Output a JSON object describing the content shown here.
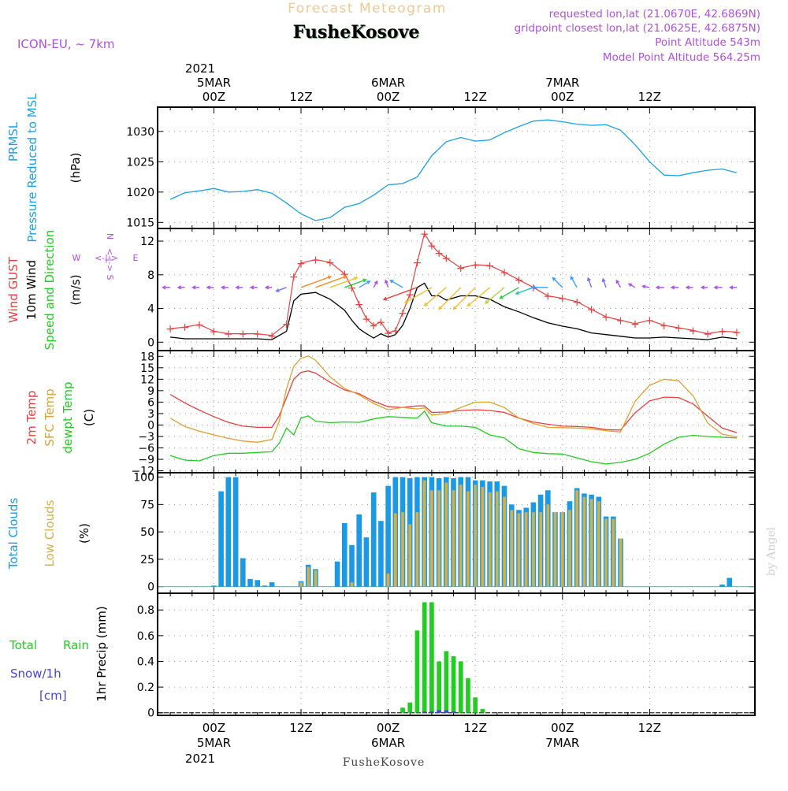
{
  "header": {
    "product": "Forecast Meteogram",
    "location": "FusheKosove",
    "model": "ICON-EU, ~ 7km",
    "requested": "requested lon,lat (21.0670E, 42.6869N)",
    "gridpoint": "gridpoint closest lon,lat (21.0625E, 42.6875N)",
    "point_alt": "Point Altitude 543m",
    "model_alt": "Model Point Altitude 564.25m",
    "credit": "by Angel",
    "footer_location": "FusheKosove"
  },
  "top_axis": {
    "year": "2021",
    "ticks": [
      {
        "h": 0,
        "label": "00Z",
        "date": "5MAR"
      },
      {
        "h": 12,
        "label": "12Z",
        "date": ""
      },
      {
        "h": 24,
        "label": "00Z",
        "date": "6MAR"
      },
      {
        "h": 36,
        "label": "12Z",
        "date": ""
      },
      {
        "h": 48,
        "label": "00Z",
        "date": "7MAR"
      },
      {
        "h": 60,
        "label": "12Z",
        "date": ""
      }
    ]
  },
  "bottom_axis": {
    "year": "2021",
    "ticks": [
      {
        "h": 0,
        "label": "00Z",
        "date": "5MAR"
      },
      {
        "h": 12,
        "label": "12Z",
        "date": ""
      },
      {
        "h": 24,
        "label": "00Z",
        "date": "6MAR"
      },
      {
        "h": 36,
        "label": "12Z",
        "date": ""
      },
      {
        "h": 48,
        "label": "00Z",
        "date": "7MAR"
      },
      {
        "h": 60,
        "label": "12Z",
        "date": ""
      }
    ]
  },
  "colors": {
    "pressure": "#1aa0e6",
    "gust": "#e84040",
    "wind": "#000000",
    "temp2m": "#e84040",
    "sfc": "#e0a030",
    "dew": "#22cc22",
    "total_clouds": "#1a9ae6",
    "low_clouds": "#d4b04a",
    "rain": "#22cc22",
    "snow": "#4444dd",
    "purple": "#b050e0",
    "title_orange": "#f0c890"
  },
  "chart_data": [
    {
      "name": "pressure",
      "type": "line",
      "ylabels": [
        "PRMSL",
        "Pressure Reduced to MSL",
        "(hPa)"
      ],
      "ylim": [
        1014,
        1034
      ],
      "yticks": [
        1015,
        1020,
        1025,
        1030
      ],
      "x_hours": [
        -6,
        -4,
        -2,
        0,
        2,
        4,
        6,
        8,
        10,
        12,
        14,
        16,
        18,
        20,
        22,
        24,
        26,
        28,
        30,
        32,
        34,
        36,
        38,
        40,
        42,
        44,
        46,
        48,
        50,
        52,
        54,
        56,
        58,
        60,
        62,
        64,
        66,
        68,
        70,
        72
      ],
      "values": [
        1018.8,
        1019.9,
        1020.2,
        1020.6,
        1020.0,
        1020.1,
        1020.4,
        1019.8,
        1018.2,
        1016.4,
        1015.3,
        1015.8,
        1017.5,
        1018.1,
        1019.5,
        1021.2,
        1021.4,
        1022.5,
        1026.0,
        1028.3,
        1029.0,
        1028.4,
        1028.6,
        1029.8,
        1030.8,
        1031.7,
        1031.9,
        1031.6,
        1031.2,
        1031.0,
        1031.1,
        1030.2,
        1027.8,
        1025.0,
        1022.8,
        1022.7,
        1023.2,
        1023.6,
        1023.8,
        1023.2
      ],
      "grid": true
    },
    {
      "name": "wind",
      "type": "line",
      "ylabels": [
        "Wind GUST",
        "10m Wind",
        "Speed and Direction",
        "(m/s)"
      ],
      "compass": {
        "n": "N",
        "s": "S",
        "w": "W",
        "e": "E",
        "arrow": "<-|->"
      },
      "ylim": [
        -1,
        13.5
      ],
      "yticks": [
        0,
        4,
        8,
        12
      ],
      "x_hours": [
        -6,
        -4,
        -2,
        0,
        2,
        4,
        6,
        8,
        10,
        11,
        12,
        14,
        16,
        18,
        19,
        20,
        21,
        22,
        23,
        24,
        25,
        26,
        27,
        28,
        29,
        30,
        31,
        32,
        34,
        36,
        38,
        40,
        42,
        44,
        46,
        48,
        50,
        52,
        54,
        56,
        58,
        60,
        62,
        64,
        66,
        68,
        70,
        72
      ],
      "gust": [
        1.6,
        1.8,
        2.1,
        1.3,
        1.0,
        1.0,
        1.0,
        0.8,
        2.2,
        7.8,
        9.4,
        9.8,
        9.5,
        8.1,
        6.5,
        4.5,
        2.8,
        2.0,
        2.4,
        1.1,
        1.4,
        3.5,
        5.7,
        9.5,
        12.9,
        11.5,
        10.6,
        10.0,
        8.8,
        9.2,
        9.1,
        8.3,
        7.4,
        6.5,
        5.5,
        5.2,
        4.8,
        3.9,
        3.0,
        2.6,
        2.2,
        2.6,
        2.0,
        1.7,
        1.4,
        1.0,
        1.3,
        1.2
      ],
      "wind": [
        0.6,
        0.4,
        0.4,
        0.4,
        0.4,
        0.4,
        0.4,
        0.3,
        1.3,
        4.9,
        5.7,
        5.9,
        5.1,
        3.8,
        2.6,
        1.6,
        1.0,
        0.5,
        1.0,
        0.6,
        0.9,
        2.0,
        4.0,
        6.5,
        7.0,
        5.5,
        5.5,
        5.0,
        5.5,
        5.5,
        5.1,
        4.2,
        3.6,
        2.9,
        2.3,
        1.9,
        1.6,
        1.1,
        0.9,
        0.7,
        0.5,
        0.5,
        0.6,
        0.5,
        0.4,
        0.3,
        0.6,
        0.4
      ],
      "direction_arrows": {
        "x_hours": [
          -6,
          -4,
          -2,
          0,
          2,
          4,
          6,
          8,
          10,
          12,
          14,
          16,
          18,
          20,
          22,
          24,
          26,
          28,
          30,
          32,
          34,
          36,
          38,
          40,
          42,
          44,
          46,
          48,
          50,
          52,
          54,
          56,
          58,
          60,
          62,
          64,
          66,
          68,
          70,
          72
        ],
        "angle_deg": [
          180,
          180,
          180,
          180,
          180,
          180,
          180,
          180,
          200,
          20,
          20,
          20,
          20,
          30,
          60,
          110,
          150,
          200,
          210,
          220,
          225,
          225,
          220,
          220,
          210,
          200,
          180,
          135,
          120,
          110,
          110,
          120,
          150,
          170,
          180,
          180,
          180,
          180,
          180,
          180
        ],
        "speed": [
          0.6,
          0.4,
          0.4,
          0.4,
          0.4,
          0.4,
          0.4,
          0.3,
          1.3,
          5.7,
          5.9,
          5.1,
          3.8,
          1.6,
          0.5,
          0.6,
          2.0,
          6.5,
          5.5,
          5.0,
          5.5,
          5.5,
          5.1,
          4.2,
          3.6,
          2.9,
          2.3,
          1.9,
          1.6,
          1.1,
          0.9,
          0.7,
          0.5,
          0.5,
          0.6,
          0.5,
          0.4,
          0.3,
          0.6,
          0.4
        ]
      },
      "grid": true
    },
    {
      "name": "temperature",
      "type": "line",
      "ylabels": [
        "2m Temp",
        "SFC Temp",
        "dewpt Temp",
        "(C)"
      ],
      "ylim": [
        -12.5,
        19.5
      ],
      "yticks": [
        -12,
        -9,
        -6,
        -3,
        0,
        3,
        6,
        9,
        12,
        15,
        18
      ],
      "x_hours": [
        -6,
        -4,
        -2,
        0,
        2,
        4,
        6,
        8,
        9,
        10,
        11,
        12,
        13,
        14,
        16,
        18,
        20,
        22,
        24,
        26,
        28,
        29,
        30,
        32,
        34,
        36,
        38,
        40,
        42,
        44,
        46,
        48,
        50,
        52,
        54,
        56,
        58,
        60,
        62,
        64,
        66,
        68,
        70,
        72
      ],
      "temp2m": [
        8.0,
        5.8,
        3.9,
        2.2,
        0.7,
        -0.3,
        -0.6,
        -0.6,
        2.4,
        7.2,
        12.0,
        13.8,
        14.2,
        13.6,
        11.2,
        9.2,
        8.2,
        6.2,
        4.8,
        4.6,
        5.0,
        5.0,
        3.3,
        3.4,
        3.8,
        4.0,
        3.8,
        3.3,
        1.8,
        0.8,
        0.2,
        -0.3,
        -0.4,
        -0.6,
        -1.2,
        -1.3,
        3.2,
        6.3,
        7.3,
        7.2,
        5.5,
        2.3,
        -0.8,
        -2.0
      ],
      "sfc": [
        1.8,
        -0.4,
        -1.6,
        -2.6,
        -3.5,
        -4.2,
        -4.5,
        -3.8,
        1.0,
        9.5,
        15.4,
        17.5,
        18.1,
        17.0,
        12.6,
        9.6,
        7.9,
        5.6,
        4.0,
        4.6,
        4.2,
        4.5,
        2.6,
        3.0,
        4.6,
        6.0,
        6.0,
        4.6,
        1.8,
        0.4,
        -0.6,
        -0.7,
        -0.8,
        -1.0,
        -1.5,
        -1.8,
        6.2,
        10.4,
        12.0,
        11.6,
        7.6,
        0.5,
        -2.4,
        -3.1
      ],
      "dewpt": [
        -8.0,
        -9.2,
        -9.4,
        -8.0,
        -7.4,
        -7.4,
        -7.2,
        -7.0,
        -4.8,
        -0.8,
        -2.6,
        1.8,
        2.4,
        1.0,
        0.6,
        0.8,
        0.7,
        1.6,
        2.2,
        2.0,
        1.8,
        3.6,
        0.6,
        -0.3,
        -0.3,
        -0.6,
        -2.6,
        -3.4,
        -6.2,
        -7.2,
        -7.5,
        -7.6,
        -8.6,
        -9.6,
        -10.2,
        -9.8,
        -9.0,
        -7.4,
        -5.0,
        -3.2,
        -2.7,
        -3.0,
        -3.2,
        -3.4
      ],
      "grid": true
    },
    {
      "name": "clouds",
      "type": "bar",
      "ylabels": [
        "Total Clouds",
        "Low Clouds",
        "(%)"
      ],
      "ylim": [
        -6,
        104
      ],
      "yticks": [
        0,
        25,
        50,
        75,
        100
      ],
      "x_hours": [
        0,
        1,
        2,
        3,
        4,
        5,
        6,
        7,
        8,
        9,
        10,
        11,
        12,
        13,
        14,
        15,
        16,
        17,
        18,
        19,
        20,
        21,
        22,
        23,
        24,
        25,
        26,
        27,
        28,
        29,
        30,
        31,
        32,
        33,
        34,
        35,
        36,
        37,
        38,
        39,
        40,
        41,
        42,
        43,
        44,
        45,
        46,
        47,
        48,
        49,
        50,
        51,
        52,
        53,
        54,
        55,
        56,
        57,
        58,
        59,
        60,
        61,
        62,
        63,
        64,
        65,
        66,
        67,
        68,
        69,
        70,
        71,
        72
      ],
      "total": [
        1,
        87,
        100,
        100,
        26,
        7,
        6,
        1,
        4,
        0,
        0,
        0,
        5,
        20,
        16,
        0,
        0,
        23,
        58,
        38,
        66,
        45,
        86,
        60,
        92,
        100,
        100,
        99,
        100,
        100,
        100,
        99,
        100,
        99,
        100,
        100,
        97,
        97,
        96,
        96,
        92,
        75,
        70,
        72,
        77,
        84,
        88,
        68,
        68,
        78,
        90,
        85,
        84,
        82,
        64,
        64,
        44,
        0,
        0,
        0,
        0,
        0,
        0,
        0,
        0,
        0,
        0,
        0,
        0,
        0,
        2,
        8,
        0
      ],
      "low": [
        0,
        0,
        0,
        0,
        0,
        0,
        0,
        0,
        0,
        0,
        0,
        0,
        4,
        18,
        15,
        0,
        0,
        0,
        0,
        4,
        0,
        0,
        0,
        0,
        12,
        67,
        68,
        57,
        68,
        97,
        88,
        88,
        95,
        88,
        93,
        87,
        93,
        91,
        86,
        87,
        82,
        70,
        67,
        68,
        68,
        68,
        75,
        68,
        68,
        70,
        88,
        82,
        80,
        78,
        62,
        62,
        44,
        0,
        0,
        0,
        0,
        0,
        0,
        0,
        0,
        0,
        0,
        0,
        0,
        0,
        0,
        0,
        0
      ],
      "grid": true
    },
    {
      "name": "precipitation",
      "type": "bar",
      "ylabels": [
        "1hr Precip (mm)"
      ],
      "legend": [
        "Total",
        "Rain",
        "Snow/1h",
        "[cm]"
      ],
      "ylim": [
        -0.02,
        0.93
      ],
      "yticks": [
        0,
        0.2,
        0.4,
        0.6,
        0.8
      ],
      "x_hours": [
        26,
        27,
        28,
        29,
        30,
        31,
        32,
        33,
        34,
        35,
        36,
        37,
        38,
        39
      ],
      "total": [
        0.04,
        0.08,
        0.64,
        0.86,
        0.86,
        0.4,
        0.48,
        0.44,
        0.4,
        0.27,
        0.12,
        0.03,
        0.0,
        0.0
      ],
      "snow": [
        0,
        0,
        0,
        0.01,
        0.01,
        0.02,
        0.02,
        0.01,
        0,
        0,
        0,
        0,
        0,
        0
      ],
      "grid": true
    }
  ]
}
